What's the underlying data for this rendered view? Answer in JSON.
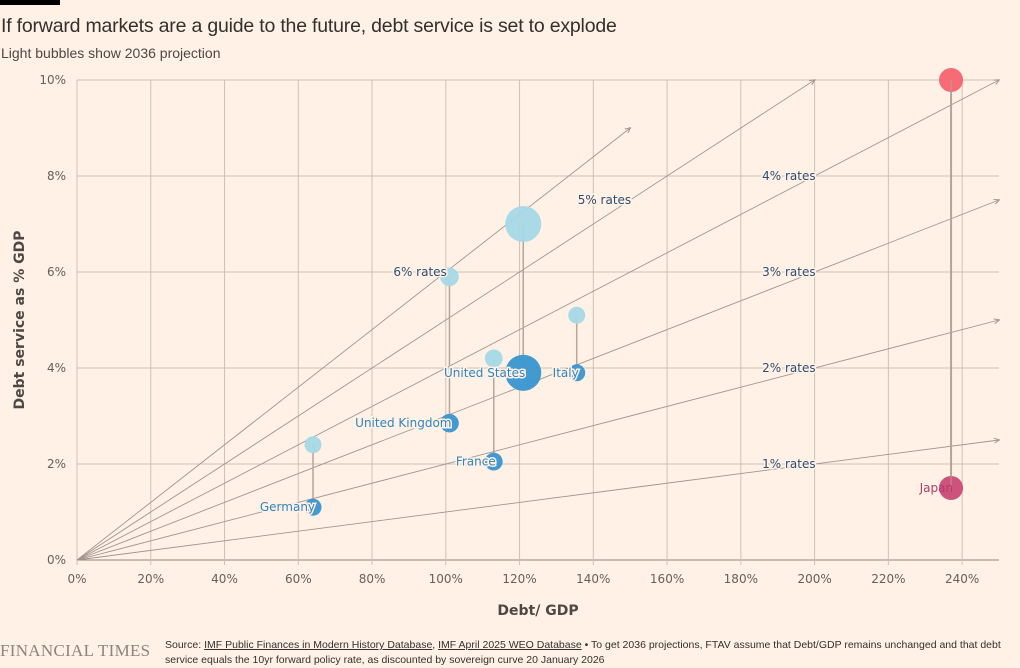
{
  "header": {
    "title": "If forward markets are a guide to the future, debt service is set to explode",
    "subtitle": "Light bubbles show 2036 projection"
  },
  "footer": {
    "logo": "FINANCIAL TIMES",
    "source_prefix": "Source: ",
    "source_link_1": "IMF Public Finances in Modern History Database",
    "source_sep": ", ",
    "source_link_2": "IMF April 2025 WEO Database",
    "note": " • To get 2036 projections, FTAV assume that Debt/GDP remains unchanged and that debt service equals the 10yr forward policy rate, as discounted by sovereign curve 20 January 2026"
  },
  "colors": {
    "background": "#fff1e5",
    "grid": "#ccc1b7",
    "current_bubble": "#3d97d0",
    "projection_bubble": "#a6d8e7",
    "japan_current": "#cc4d78",
    "japan_projection": "#f5636f",
    "rate_line": "#a09690",
    "connector": "#b3a69c",
    "country_label": "#2f85bd",
    "japan_label": "#b33d68"
  },
  "chart_data": {
    "type": "scatter",
    "title": "If forward markets are a guide to the future, debt service is set to explode",
    "subtitle": "Light bubbles show 2036 projection",
    "xlabel": "Debt/ GDP",
    "ylabel": "Debt service as % GDP",
    "xlim": [
      0,
      250
    ],
    "ylim": [
      0,
      10
    ],
    "x_ticks": [
      "0%",
      "20%",
      "40%",
      "60%",
      "80%",
      "100%",
      "120%",
      "140%",
      "160%",
      "180%",
      "200%",
      "220%",
      "240%"
    ],
    "x_tick_values": [
      0,
      20,
      40,
      60,
      80,
      100,
      120,
      140,
      160,
      180,
      200,
      220,
      240
    ],
    "y_ticks": [
      "0%",
      "2%",
      "4%",
      "6%",
      "8%",
      "10%"
    ],
    "y_tick_values": [
      0,
      2,
      4,
      6,
      8,
      10
    ],
    "grid": true,
    "rate_lines": [
      {
        "label": "1% rates",
        "rate": 1,
        "x_end": 250,
        "label_x": 200,
        "label_y": 2
      },
      {
        "label": "2% rates",
        "rate": 2,
        "x_end": 250,
        "label_x": 200,
        "label_y": 4
      },
      {
        "label": "3% rates",
        "rate": 3,
        "x_end": 250,
        "label_x": 200,
        "label_y": 6
      },
      {
        "label": "4% rates",
        "rate": 4,
        "x_end": 250,
        "label_x": 200,
        "label_y": 8
      },
      {
        "label": "5% rates",
        "rate": 5,
        "x_end": 200,
        "label_x": 150,
        "label_y": 7.5
      },
      {
        "label": "6% rates",
        "rate": 6,
        "x_end": 150,
        "label_x": 100,
        "label_y": 6
      }
    ],
    "series": [
      {
        "name": "Germany",
        "debt_gdp": 64,
        "current": 1.1,
        "projection_2036": 2.4,
        "size": 1,
        "color_group": "default"
      },
      {
        "name": "United Kingdom",
        "debt_gdp": 101,
        "current": 2.85,
        "projection_2036": 5.9,
        "size": 1.2,
        "color_group": "default"
      },
      {
        "name": "France",
        "debt_gdp": 113,
        "current": 2.05,
        "projection_2036": 4.2,
        "size": 1.1,
        "color_group": "default"
      },
      {
        "name": "United States",
        "debt_gdp": 121,
        "current": 3.9,
        "projection_2036": 7.0,
        "size": 4.5,
        "color_group": "default"
      },
      {
        "name": "Italy",
        "debt_gdp": 135.5,
        "current": 3.9,
        "projection_2036": 5.1,
        "size": 1,
        "color_group": "default"
      },
      {
        "name": "Japan",
        "debt_gdp": 237,
        "current": 1.5,
        "projection_2036": 10.0,
        "size": 2,
        "color_group": "japan"
      }
    ]
  }
}
